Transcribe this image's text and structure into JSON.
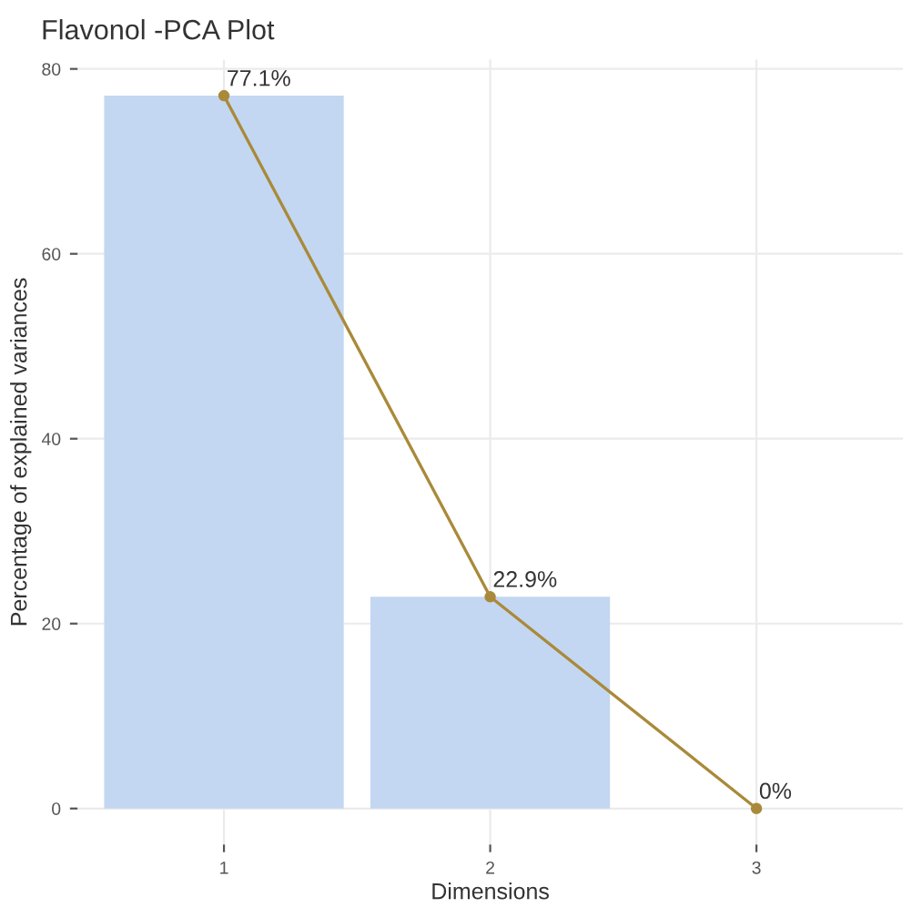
{
  "chart_data": {
    "type": "bar",
    "title": "Flavonol -PCA Plot",
    "xlabel": "Dimensions",
    "ylabel": "Percentage of explained variances",
    "categories": [
      "1",
      "2",
      "3"
    ],
    "series": [
      {
        "color": "#c3d7f2",
        "values": [
          77.1,
          22.9,
          0
        ]
      },
      {
        "type": "line",
        "color": "#a98a3a",
        "values": [
          77.1,
          22.9,
          0
        ],
        "marker": "circle",
        "line_style": "solid",
        "value_labels": [
          "77.1%",
          "22.9%",
          "0%"
        ]
      }
    ],
    "ylim": [
      -3.9,
      81
    ],
    "yticks": [
      0,
      20,
      40,
      60,
      80
    ],
    "grid": true,
    "legend": false
  }
}
